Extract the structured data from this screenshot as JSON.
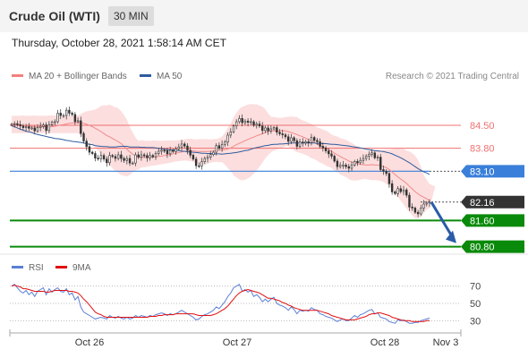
{
  "header": {
    "title": "Crude Oil (WTI)",
    "timeframe": "30 MIN"
  },
  "timestamp": "Thursday, October 28, 2021 1:58:14 AM CET",
  "legend": {
    "bollinger": {
      "label": "MA 20 + Bollinger Bands",
      "color": "#f08080"
    },
    "ma50": {
      "label": "MA 50",
      "color": "#2e5c9e"
    },
    "copyright": "Research © 2021 Trading Central"
  },
  "rsi_legend": {
    "rsi": {
      "label": "RSI",
      "color": "#5b7fd6"
    },
    "ma9": {
      "label": "9MA",
      "color": "#e01010"
    }
  },
  "chart_data": {
    "type": "candlestick",
    "instrument": "Crude Oil (WTI)",
    "timeframe": "30 MIN",
    "x_ticks": [
      "Oct 26",
      "Oct 27",
      "Oct 28",
      "Nov 3"
    ],
    "y_range": [
      80.6,
      85.1
    ],
    "levels": [
      {
        "value": 84.5,
        "label": "84.50",
        "kind": "resistance",
        "color": "#f07070",
        "tag": false
      },
      {
        "value": 83.8,
        "label": "83.80",
        "kind": "resistance",
        "color": "#f07070",
        "tag": false
      },
      {
        "value": 83.1,
        "label": "83.10",
        "kind": "pivot",
        "color": "#3a7fd9",
        "tag": true
      },
      {
        "value": 82.16,
        "label": "82.16",
        "kind": "last-price",
        "color": "#333333",
        "tag": true
      },
      {
        "value": 81.6,
        "label": "81.60",
        "kind": "support",
        "color": "#0a8a0a",
        "tag": true
      },
      {
        "value": 80.8,
        "label": "80.80",
        "kind": "support",
        "color": "#0a8a0a",
        "tag": true
      }
    ],
    "close": [
      84.53,
      84.55,
      84.52,
      84.48,
      84.43,
      84.46,
      84.41,
      84.42,
      84.33,
      84.43,
      84.47,
      84.51,
      84.34,
      84.52,
      84.6,
      84.61,
      84.87,
      84.8,
      84.8,
      84.96,
      84.87,
      84.83,
      84.61,
      84.64,
      84.25,
      84.02,
      83.85,
      83.68,
      83.64,
      83.5,
      83.48,
      83.58,
      83.47,
      83.36,
      83.58,
      83.55,
      83.49,
      83.6,
      83.49,
      83.43,
      83.49,
      83.35,
      83.35,
      83.6,
      83.53,
      83.6,
      83.58,
      83.51,
      83.58,
      83.54,
      83.64,
      83.71,
      83.74,
      83.73,
      83.63,
      83.74,
      83.7,
      83.78,
      83.84,
      83.93,
      83.87,
      83.74,
      83.59,
      83.47,
      83.27,
      83.26,
      83.39,
      83.49,
      83.53,
      83.61,
      83.68,
      83.88,
      83.8,
      83.92,
      83.99,
      84.2,
      84.3,
      84.48,
      84.61,
      84.71,
      84.58,
      84.63,
      84.59,
      84.61,
      84.5,
      84.54,
      84.48,
      84.34,
      84.42,
      84.33,
      84.39,
      84.43,
      84.29,
      84.24,
      84.21,
      84.15,
      84.01,
      84.12,
      84.03,
      83.86,
      83.99,
      83.96,
      84.0,
      83.97,
      84.13,
      84.04,
      84.0,
      83.86,
      83.81,
      83.72,
      83.63,
      83.56,
      83.41,
      83.24,
      83.28,
      83.29,
      83.24,
      83.19,
      83.29,
      83.4,
      83.36,
      83.43,
      83.49,
      83.56,
      83.62,
      83.66,
      83.51,
      83.53,
      83.15,
      83.1,
      83.03,
      82.72,
      82.47,
      82.42,
      82.57,
      82.48,
      82.53,
      82.37,
      82.01,
      81.98,
      81.85,
      81.8,
      81.98,
      82.1,
      82.13,
      82.16
    ],
    "ma20": [
      84.53,
      84.54,
      84.53,
      84.52,
      84.5,
      84.49,
      84.48,
      84.47,
      84.45,
      84.45,
      84.45,
      84.46,
      84.45,
      84.45,
      84.46,
      84.47,
      84.49,
      84.51,
      84.52,
      84.54,
      84.56,
      84.57,
      84.58,
      84.59,
      84.58,
      84.56,
      84.53,
      84.5,
      84.46,
      84.41,
      84.36,
      84.31,
      84.25,
      84.19,
      84.15,
      84.1,
      84.05,
      84.0,
      83.94,
      83.86,
      83.77,
      83.69,
      83.62,
      83.57,
      83.52,
      83.53,
      83.52,
      83.53,
      83.53,
      83.54,
      83.54,
      83.55,
      83.56,
      83.58,
      83.6,
      83.61,
      83.63,
      83.65,
      83.67,
      83.69,
      83.71,
      83.71,
      83.72,
      83.72,
      83.71,
      83.7,
      83.7,
      83.7,
      83.7,
      83.71,
      83.72,
      83.73,
      83.74,
      83.75,
      83.76,
      83.78,
      83.81,
      83.86,
      83.91,
      83.95,
      83.99,
      84.03,
      84.07,
      84.11,
      84.14,
      84.18,
      84.21,
      84.24,
      84.28,
      84.31,
      84.33,
      84.33,
      84.33,
      84.34,
      84.34,
      84.33,
      84.31,
      84.28,
      84.25,
      84.22,
      84.18,
      84.15,
      84.11,
      84.07,
      84.03,
      83.98,
      83.93,
      83.88,
      83.84,
      83.8,
      83.76,
      83.71,
      83.65,
      83.6,
      83.55,
      83.5,
      83.46,
      83.41,
      83.38,
      83.36,
      83.33,
      83.31,
      83.3,
      83.29,
      83.29,
      83.3,
      83.29,
      83.29,
      83.27,
      83.24,
      83.21,
      83.15,
      83.08,
      83.0,
      82.93,
      82.86,
      82.8,
      82.73,
      82.64,
      82.56,
      82.48,
      82.41,
      82.35,
      82.31,
      82.26,
      82.2
    ],
    "upper_band": [
      84.79,
      84.79,
      84.79,
      84.79,
      84.8,
      84.79,
      84.79,
      84.79,
      84.8,
      84.79,
      84.79,
      84.79,
      84.79,
      84.8,
      84.8,
      84.8,
      84.79,
      84.8,
      84.79,
      84.8,
      84.79,
      84.79,
      84.8,
      84.8,
      84.85,
      84.89,
      84.93,
      84.94,
      84.96,
      84.98,
      85.03,
      85.09,
      85.11,
      85.11,
      85.13,
      85.09,
      85.05,
      85.02,
      84.93,
      84.81,
      84.67,
      84.46,
      84.28,
      84.13,
      84.02,
      84.05,
      84.03,
      84.03,
      84.03,
      84.04,
      84.04,
      84.03,
      84.03,
      84.03,
      84.04,
      84.04,
      84.04,
      84.04,
      84.05,
      84.06,
      84.07,
      84.09,
      84.09,
      84.08,
      84.07,
      84.08,
      84.08,
      84.08,
      84.08,
      84.07,
      84.08,
      84.08,
      84.11,
      84.16,
      84.27,
      84.42,
      84.55,
      84.74,
      84.88,
      85.0,
      85.06,
      85.1,
      85.13,
      85.15,
      85.14,
      85.14,
      85.1,
      85.07,
      84.99,
      84.86,
      84.76,
      84.75,
      84.74,
      84.73,
      84.73,
      84.75,
      84.76,
      84.77,
      84.76,
      84.75,
      84.69,
      84.65,
      84.62,
      84.58,
      84.55,
      84.49,
      84.44,
      84.41,
      84.37,
      84.34,
      84.29,
      84.22,
      84.18,
      84.16,
      84.11,
      84.08,
      84.06,
      84.01,
      83.96,
      83.91,
      83.83,
      83.77,
      83.74,
      83.72,
      83.73,
      83.76,
      83.75,
      83.75,
      83.75,
      83.75,
      83.76,
      83.76,
      83.77,
      83.8,
      83.8,
      83.78,
      83.78,
      83.73,
      83.7,
      83.65,
      83.57,
      83.45,
      83.24,
      82.98,
      82.84,
      82.71,
      82.67,
      82.64
    ],
    "lower_band": [
      84.26,
      84.26,
      84.26,
      84.26,
      84.26,
      84.26,
      84.26,
      84.26,
      84.26,
      84.26,
      84.26,
      84.26,
      84.26,
      84.26,
      84.26,
      84.26,
      84.26,
      84.26,
      84.26,
      84.26,
      84.26,
      84.26,
      84.26,
      84.26,
      84.19,
      84.13,
      84.07,
      84.01,
      83.9,
      83.83,
      83.74,
      83.62,
      83.5,
      83.36,
      83.29,
      83.19,
      83.1,
      83.05,
      82.98,
      82.97,
      82.94,
      82.99,
      83.06,
      83.13,
      83.15,
      83.21,
      83.22,
      83.24,
      83.26,
      83.27,
      83.28,
      83.3,
      83.31,
      83.33,
      83.34,
      83.36,
      83.38,
      83.4,
      83.41,
      83.42,
      83.43,
      83.42,
      83.41,
      83.39,
      83.35,
      83.31,
      83.3,
      83.31,
      83.32,
      83.36,
      83.38,
      83.39,
      83.37,
      83.38,
      83.3,
      83.2,
      83.11,
      82.98,
      82.91,
      82.85,
      82.82,
      82.84,
      82.88,
      82.94,
      83.02,
      83.12,
      83.24,
      83.36,
      83.49,
      83.59,
      83.68,
      83.73,
      83.76,
      83.79,
      83.81,
      83.86,
      83.87,
      83.79,
      83.74,
      83.68,
      83.66,
      83.63,
      83.6,
      83.55,
      83.5,
      83.47,
      83.42,
      83.36,
      83.33,
      83.27,
      83.24,
      83.2,
      83.12,
      83.08,
      83.0,
      82.96,
      82.92,
      82.86,
      82.82,
      82.82,
      82.82,
      82.84,
      82.86,
      82.86,
      82.84,
      82.83,
      82.83,
      82.82,
      82.81,
      82.77,
      82.71,
      82.66,
      82.57,
      82.44,
      82.32,
      82.2,
      82.09,
      81.96,
      81.86,
      81.75,
      81.66,
      81.66,
      81.71,
      81.83,
      81.93,
      81.98
    ],
    "ma50": [
      84.48,
      84.46,
      84.42,
      84.38,
      84.35,
      84.32,
      84.3,
      84.28,
      84.24,
      84.22,
      84.2,
      84.18,
      84.16,
      84.14,
      84.12,
      84.1,
      84.09,
      84.08,
      84.06,
      84.04,
      84.03,
      84.01,
      84.0,
      83.99,
      83.98,
      83.96,
      83.94,
      83.92,
      83.91,
      83.88,
      83.87,
      83.86,
      83.85,
      83.85,
      83.84,
      83.84,
      83.84,
      83.85,
      83.86,
      83.86,
      83.86,
      83.84,
      83.84,
      83.84,
      83.84,
      83.83,
      83.83,
      83.82,
      83.82,
      83.82,
      83.81,
      83.8,
      83.79,
      83.77,
      83.76,
      83.75,
      83.75,
      83.74,
      83.73,
      83.71,
      83.71,
      83.69,
      83.69,
      83.68,
      83.67,
      83.66,
      83.65,
      83.65,
      83.64,
      83.64,
      83.63,
      83.63,
      83.63,
      83.62,
      83.63,
      83.64,
      83.65,
      83.66,
      83.67,
      83.69,
      83.71,
      83.73,
      83.74,
      83.77,
      83.8,
      83.82,
      83.84,
      83.86,
      83.88,
      83.89,
      83.91,
      83.92,
      83.92,
      83.93,
      83.93,
      83.94,
      83.95,
      83.96,
      83.96,
      83.96,
      83.96,
      83.96,
      83.96,
      83.96,
      83.96,
      83.96,
      83.95,
      83.95,
      83.94,
      83.94,
      83.93,
      83.92,
      83.92,
      83.91,
      83.9,
      83.89,
      83.88,
      83.87,
      83.85,
      83.84,
      83.83,
      83.81,
      83.79,
      83.77,
      83.76,
      83.74,
      83.73,
      83.72,
      83.71,
      83.7,
      83.68,
      83.66,
      83.63,
      83.59,
      83.55,
      83.51,
      83.46,
      83.41,
      83.36,
      83.3,
      83.24,
      83.18,
      83.13,
      83.08,
      83.05,
      83.0
    ],
    "forecast": {
      "from": 82.16,
      "to": 80.8,
      "direction": "down"
    },
    "rsi": {
      "levels": [
        70,
        50,
        30
      ],
      "y_range": [
        20,
        80
      ],
      "rsi": [
        70,
        72,
        68,
        64,
        62,
        65,
        60,
        63,
        58,
        64,
        66,
        68,
        60,
        67,
        63,
        66,
        68,
        64,
        63,
        67,
        60,
        62,
        54,
        58,
        46,
        40,
        38,
        36,
        34,
        32,
        33,
        34,
        33,
        32,
        36,
        34,
        33,
        35,
        33,
        32,
        34,
        32,
        33,
        36,
        34,
        36,
        35,
        34,
        36,
        35,
        37,
        38,
        39,
        38,
        36,
        38,
        37,
        38,
        40,
        42,
        40,
        38,
        36,
        34,
        31,
        32,
        35,
        37,
        38,
        40,
        42,
        46,
        44,
        48,
        52,
        58,
        62,
        68,
        70,
        72,
        64,
        66,
        63,
        65,
        58,
        60,
        57,
        52,
        55,
        52,
        55,
        57,
        50,
        48,
        47,
        45,
        42,
        46,
        43,
        38,
        42,
        41,
        42,
        41,
        45,
        43,
        42,
        38,
        37,
        35,
        34,
        33,
        31,
        29,
        31,
        32,
        30,
        30,
        33,
        36,
        34,
        37,
        38,
        40,
        42,
        43,
        38,
        39,
        34,
        33,
        32,
        29,
        28,
        27,
        31,
        30,
        31,
        29,
        27,
        27,
        28,
        28,
        30,
        31,
        32,
        33
      ],
      "ma9": [
        70,
        71,
        70,
        69,
        67,
        67,
        66,
        65,
        64,
        64,
        64,
        64,
        63,
        63,
        64,
        65,
        65,
        65,
        65,
        65,
        64,
        64,
        63,
        62,
        59,
        55,
        52,
        48,
        44,
        40,
        38,
        37,
        35,
        34,
        34,
        34,
        34,
        34,
        34,
        34,
        34,
        34,
        34,
        34,
        34,
        34,
        34,
        34,
        35,
        35,
        35,
        36,
        36,
        37,
        37,
        37,
        37,
        38,
        38,
        38,
        38,
        38,
        38,
        38,
        37,
        36,
        36,
        36,
        36,
        36,
        37,
        38,
        40,
        42,
        44,
        47,
        51,
        55,
        59,
        62,
        64,
        65,
        66,
        65,
        64,
        63,
        62,
        60,
        58,
        56,
        56,
        55,
        54,
        53,
        51,
        50,
        48,
        47,
        45,
        44,
        43,
        42,
        42,
        42,
        42,
        42,
        42,
        41,
        40,
        39,
        38,
        36,
        35,
        34,
        33,
        32,
        31,
        31,
        31,
        31,
        32,
        33,
        34,
        35,
        37,
        38,
        38,
        39,
        39,
        38,
        37,
        36,
        34,
        33,
        32,
        31,
        30,
        30,
        30,
        29,
        29,
        29,
        29,
        29,
        30,
        30
      ]
    }
  }
}
